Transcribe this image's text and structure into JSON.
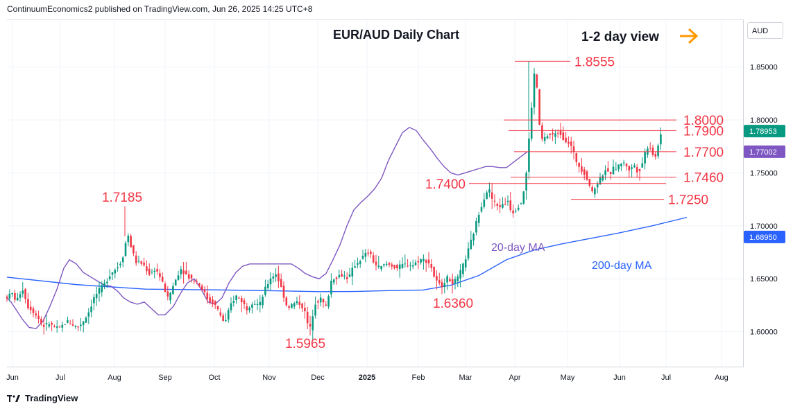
{
  "header": {
    "published": "ContinuumEconomics2 published on TradingView.com, Jun 26, 2025 14:25 UTC+8"
  },
  "currency_button": "AUD",
  "footer": {
    "brand": "TradingView"
  },
  "colors": {
    "up": "#089981",
    "down": "#f23645",
    "ma20": "#7e57c2",
    "ma200": "#2962ff",
    "level": "#f23645",
    "arrow": "#ff9800",
    "grid": "#f0f3fa"
  },
  "chart_data": {
    "type": "candlestick",
    "title": "EUR/AUD Daily Chart",
    "subtitle": "1-2 day view",
    "view_arrow": "right-arrow-icon",
    "x_ticks": [
      "Jun",
      "Jul",
      "Aug",
      "Sep",
      "Oct",
      "Nov",
      "Dec",
      "2025",
      "Feb",
      "Mar",
      "Apr",
      "May",
      "Jun",
      "Jul",
      "Aug"
    ],
    "y_ticks": [
      "1.60000",
      "1.65000",
      "1.70000",
      "1.75000",
      "1.80000",
      "1.85000"
    ],
    "ylim": [
      1.567,
      1.895
    ],
    "price_labels": [
      {
        "value": "1.78953",
        "price": 1.7895,
        "color": "#089981"
      },
      {
        "value": "1.77002",
        "price": 1.77,
        "color": "#7e57c2"
      },
      {
        "value": "1.68950",
        "price": 1.6895,
        "color": "#2962ff"
      }
    ],
    "levels": [
      {
        "label": "1.8555",
        "price": 1.8555,
        "from": "2025-04-03",
        "to": "2025-05-10"
      },
      {
        "label": "1.8000",
        "price": 1.8,
        "from": "2025-04-01",
        "to": "2025-07-01"
      },
      {
        "label": "1.7900",
        "price": 1.79,
        "from": "2025-04-01",
        "to": "2025-07-01"
      },
      {
        "label": "1.7700",
        "price": 1.77,
        "from": "2025-04-01",
        "to": "2025-07-01"
      },
      {
        "label": "1.7460",
        "price": 1.746,
        "from": "2025-04-01",
        "to": "2025-07-01"
      },
      {
        "label": "1.7400",
        "price": 1.74,
        "from": "2025-03-01",
        "to": "2025-07-01"
      },
      {
        "label": "1.7250",
        "price": 1.725,
        "from": "2025-05-10",
        "to": "2025-07-01"
      }
    ],
    "extreme_labels": [
      {
        "label": "1.7185",
        "price": 1.7185
      },
      {
        "label": "1.5965",
        "price": 1.5965
      },
      {
        "label": "1.6360",
        "price": 1.636
      }
    ],
    "series": [
      {
        "name": "20-day MA",
        "values": [
          [
            0,
            1.632
          ],
          [
            6,
            1.628
          ],
          [
            12,
            1.622
          ],
          [
            22,
            1.612
          ],
          [
            32,
            1.604
          ],
          [
            42,
            1.603
          ],
          [
            52,
            1.61
          ],
          [
            62,
            1.624
          ],
          [
            72,
            1.64
          ],
          [
            82,
            1.66
          ],
          [
            90,
            1.668
          ],
          [
            100,
            1.664
          ],
          [
            110,
            1.656
          ],
          [
            120,
            1.652
          ],
          [
            130,
            1.648
          ],
          [
            140,
            1.644
          ],
          [
            150,
            1.643
          ],
          [
            160,
            1.638
          ],
          [
            168,
            1.632
          ],
          [
            178,
            1.628
          ],
          [
            188,
            1.626
          ],
          [
            198,
            1.628
          ],
          [
            208,
            1.622
          ],
          [
            218,
            1.616
          ],
          [
            228,
            1.616
          ],
          [
            240,
            1.624
          ],
          [
            250,
            1.636
          ],
          [
            260,
            1.646
          ],
          [
            270,
            1.65
          ],
          [
            280,
            1.64
          ],
          [
            290,
            1.628
          ],
          [
            300,
            1.626
          ],
          [
            310,
            1.632
          ],
          [
            320,
            1.646
          ],
          [
            330,
            1.656
          ],
          [
            340,
            1.662
          ],
          [
            350,
            1.664
          ],
          [
            360,
            1.664
          ],
          [
            370,
            1.664
          ],
          [
            380,
            1.664
          ],
          [
            390,
            1.664
          ],
          [
            400,
            1.664
          ],
          [
            410,
            1.664
          ],
          [
            420,
            1.66
          ],
          [
            430,
            1.655
          ],
          [
            440,
            1.652
          ],
          [
            450,
            1.65
          ],
          [
            460,
            1.655
          ],
          [
            470,
            1.668
          ],
          [
            480,
            1.682
          ],
          [
            490,
            1.7
          ],
          [
            500,
            1.715
          ],
          [
            510,
            1.722
          ],
          [
            520,
            1.728
          ],
          [
            530,
            1.735
          ],
          [
            540,
            1.745
          ],
          [
            550,
            1.762
          ],
          [
            560,
            1.775
          ],
          [
            570,
            1.788
          ],
          [
            580,
            1.793
          ],
          [
            590,
            1.79
          ],
          [
            600,
            1.781
          ],
          [
            610,
            1.773
          ],
          [
            620,
            1.764
          ],
          [
            630,
            1.756
          ],
          [
            640,
            1.75
          ],
          [
            650,
            1.748
          ],
          [
            660,
            1.75
          ],
          [
            670,
            1.752
          ],
          [
            680,
            1.754
          ],
          [
            690,
            1.756
          ],
          [
            700,
            1.756
          ],
          [
            710,
            1.755
          ],
          [
            720,
            1.755
          ],
          [
            730,
            1.76
          ],
          [
            740,
            1.765
          ],
          [
            750,
            1.77
          ]
        ]
      },
      {
        "name": "200-day MA",
        "values": [
          [
            0,
            1.6515
          ],
          [
            100,
            1.6445
          ],
          [
            200,
            1.6402
          ],
          [
            300,
            1.6395
          ],
          [
            400,
            1.6385
          ],
          [
            450,
            1.6378
          ],
          [
            500,
            1.638
          ],
          [
            550,
            1.6388
          ],
          [
            600,
            1.6394
          ],
          [
            640,
            1.644
          ],
          [
            680,
            1.653
          ],
          [
            720,
            1.668
          ],
          [
            760,
            1.6772
          ],
          [
            800,
            1.683
          ],
          [
            840,
            1.688
          ],
          [
            880,
            1.693
          ],
          [
            930,
            1.7
          ],
          [
            980,
            1.708
          ]
        ]
      }
    ],
    "ma_labels": [
      "20-day MA",
      "200-day MA"
    ],
    "candle_path": [
      [
        0,
        1.633
      ],
      [
        8,
        1.636
      ],
      [
        14,
        1.628
      ],
      [
        22,
        1.642
      ],
      [
        30,
        1.624
      ],
      [
        38,
        1.619
      ],
      [
        46,
        1.612
      ],
      [
        52,
        1.605
      ],
      [
        60,
        1.608
      ],
      [
        68,
        1.604
      ],
      [
        76,
        1.603
      ],
      [
        86,
        1.61
      ],
      [
        94,
        1.607
      ],
      [
        102,
        1.604
      ],
      [
        110,
        1.61
      ],
      [
        118,
        1.619
      ],
      [
        126,
        1.633
      ],
      [
        134,
        1.64
      ],
      [
        142,
        1.646
      ],
      [
        150,
        1.656
      ],
      [
        158,
        1.66
      ],
      [
        166,
        1.668
      ],
      [
        174,
        1.693
      ],
      [
        180,
        1.677
      ],
      [
        186,
        1.666
      ],
      [
        196,
        1.664
      ],
      [
        206,
        1.654
      ],
      [
        214,
        1.66
      ],
      [
        222,
        1.65
      ],
      [
        232,
        1.631
      ],
      [
        240,
        1.644
      ],
      [
        250,
        1.66
      ],
      [
        258,
        1.654
      ],
      [
        266,
        1.65
      ],
      [
        274,
        1.647
      ],
      [
        282,
        1.64
      ],
      [
        290,
        1.63
      ],
      [
        298,
        1.627
      ],
      [
        306,
        1.618
      ],
      [
        314,
        1.607
      ],
      [
        322,
        1.625
      ],
      [
        330,
        1.634
      ],
      [
        338,
        1.629
      ],
      [
        346,
        1.622
      ],
      [
        354,
        1.628
      ],
      [
        364,
        1.625
      ],
      [
        372,
        1.64
      ],
      [
        380,
        1.651
      ],
      [
        388,
        1.655
      ],
      [
        396,
        1.64
      ],
      [
        404,
        1.623
      ],
      [
        412,
        1.626
      ],
      [
        420,
        1.628
      ],
      [
        428,
        1.622
      ],
      [
        436,
        1.6
      ],
      [
        444,
        1.627
      ],
      [
        452,
        1.631
      ],
      [
        460,
        1.623
      ],
      [
        468,
        1.65
      ],
      [
        476,
        1.652
      ],
      [
        484,
        1.654
      ],
      [
        492,
        1.65
      ],
      [
        500,
        1.662
      ],
      [
        508,
        1.667
      ],
      [
        516,
        1.673
      ],
      [
        522,
        1.675
      ],
      [
        530,
        1.664
      ],
      [
        538,
        1.66
      ],
      [
        546,
        1.664
      ],
      [
        554,
        1.663
      ],
      [
        562,
        1.66
      ],
      [
        570,
        1.663
      ],
      [
        578,
        1.664
      ],
      [
        586,
        1.663
      ],
      [
        594,
        1.668
      ],
      [
        602,
        1.668
      ],
      [
        610,
        1.664
      ],
      [
        618,
        1.648
      ],
      [
        626,
        1.643
      ],
      [
        634,
        1.651
      ],
      [
        642,
        1.647
      ],
      [
        648,
        1.648
      ],
      [
        656,
        1.66
      ],
      [
        664,
        1.675
      ],
      [
        672,
        1.692
      ],
      [
        680,
        1.712
      ],
      [
        688,
        1.727
      ],
      [
        694,
        1.736
      ],
      [
        700,
        1.724
      ],
      [
        708,
        1.718
      ],
      [
        716,
        1.72
      ],
      [
        722,
        1.724
      ],
      [
        728,
        1.712
      ],
      [
        736,
        1.718
      ],
      [
        742,
        1.723
      ],
      [
        748,
        1.745
      ],
      [
        754,
        1.795
      ],
      [
        760,
        1.843
      ],
      [
        764,
        1.83
      ],
      [
        768,
        1.79
      ],
      [
        772,
        1.78
      ],
      [
        778,
        1.785
      ],
      [
        784,
        1.786
      ],
      [
        790,
        1.786
      ],
      [
        796,
        1.79
      ],
      [
        802,
        1.782
      ],
      [
        808,
        1.78
      ],
      [
        814,
        1.774
      ],
      [
        820,
        1.762
      ],
      [
        826,
        1.755
      ],
      [
        832,
        1.75
      ],
      [
        838,
        1.742
      ],
      [
        844,
        1.73
      ],
      [
        850,
        1.74
      ],
      [
        856,
        1.745
      ],
      [
        862,
        1.754
      ],
      [
        868,
        1.748
      ],
      [
        874,
        1.754
      ],
      [
        880,
        1.755
      ],
      [
        886,
        1.76
      ],
      [
        892,
        1.758
      ],
      [
        898,
        1.752
      ],
      [
        904,
        1.758
      ],
      [
        910,
        1.75
      ],
      [
        916,
        1.76
      ],
      [
        922,
        1.775
      ],
      [
        928,
        1.774
      ],
      [
        934,
        1.762
      ],
      [
        940,
        1.782
      ],
      [
        946,
        1.79
      ],
      [
        952,
        1.79
      ]
    ]
  }
}
